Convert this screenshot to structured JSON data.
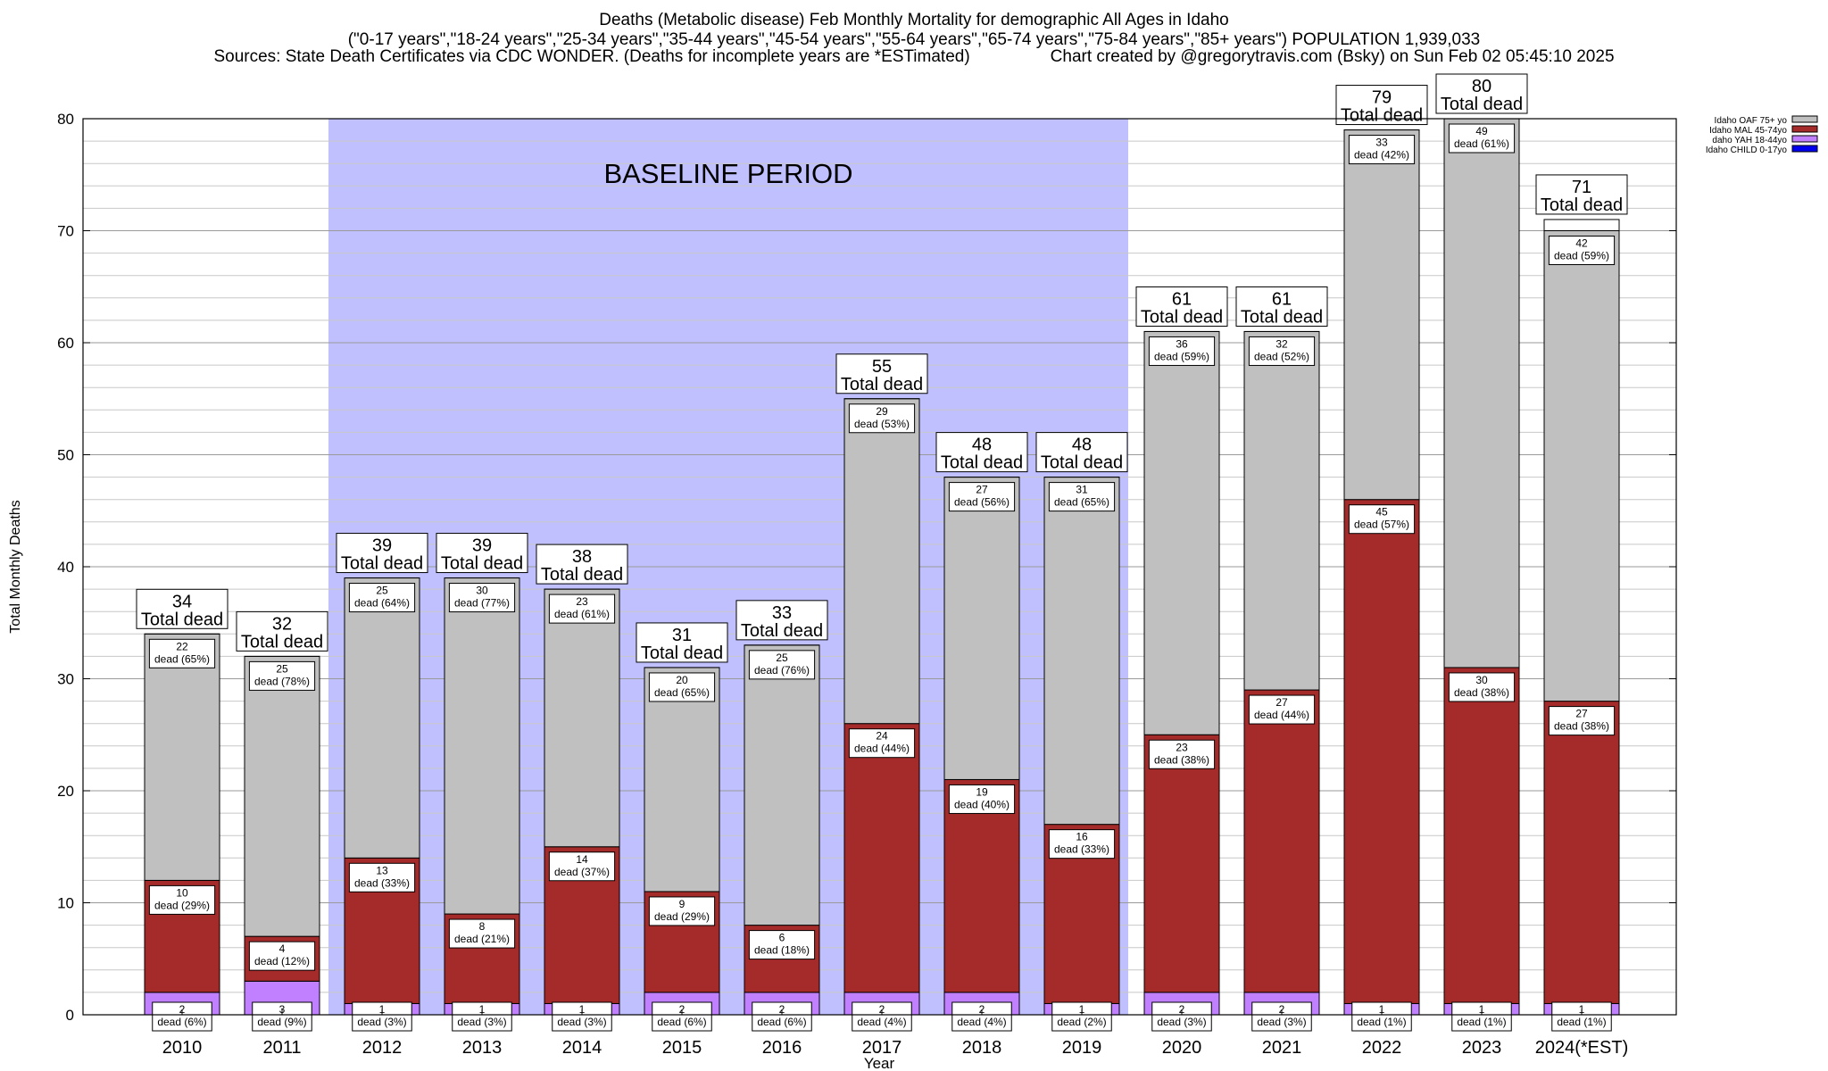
{
  "header": {
    "title": "Deaths (Metabolic disease) Feb Monthly Mortality for demographic All Ages in Idaho",
    "subtitle": "(\"0-17 years\",\"18-24 years\",\"25-34 years\",\"35-44 years\",\"45-54 years\",\"55-64 years\",\"65-74 years\",\"75-84 years\",\"85+ years\") POPULATION 1,939,033",
    "sources": "Sources: State Death Certificates via CDC WONDER. (Deaths for incomplete years are *ESTimated)",
    "credit": "Chart created by @gregorytravis.com (Bsky) on Sun Feb 02 05:45:10 2025"
  },
  "colors": {
    "oaf": "#c0c0c0",
    "mal": "#a52a2a",
    "yah": "#c080ff",
    "child": "#0000ee",
    "baseline": "#c0c0ff"
  },
  "chart_data": {
    "type": "bar",
    "stacked": true,
    "ylabel": "Total Monthly Deaths",
    "xlabel": "Year",
    "ylim": [
      0,
      80
    ],
    "yticks": [
      0,
      10,
      20,
      30,
      40,
      50,
      60,
      70,
      80
    ],
    "grid": true,
    "legend_position": "top-right",
    "baseline_label": "BASELINE PERIOD",
    "baseline_range": [
      "2012",
      "2019"
    ],
    "categories": [
      "2010",
      "2011",
      "2012",
      "2013",
      "2014",
      "2015",
      "2016",
      "2017",
      "2018",
      "2019",
      "2020",
      "2021",
      "2022",
      "2023",
      "2024(*EST)"
    ],
    "totals": [
      34,
      32,
      39,
      39,
      38,
      31,
      33,
      55,
      48,
      48,
      61,
      61,
      79,
      80,
      71
    ],
    "total_suffix": "Total dead",
    "dead_word": "dead",
    "series": [
      {
        "name": "Idaho CHILD 0-17yo",
        "key": "child",
        "values": [
          0,
          0,
          0,
          0,
          0,
          0,
          0,
          0,
          0,
          0,
          0,
          0,
          0,
          0,
          0
        ],
        "pct": [
          0,
          0,
          0,
          0,
          0,
          0,
          0,
          0,
          0,
          0,
          0,
          0,
          0,
          0,
          0
        ]
      },
      {
        "name": "daho YAH 18-44yo",
        "key": "yah",
        "values": [
          2,
          3,
          1,
          1,
          1,
          2,
          2,
          2,
          2,
          1,
          2,
          2,
          1,
          1,
          1
        ],
        "pct": [
          6,
          9,
          3,
          3,
          3,
          6,
          6,
          4,
          4,
          2,
          3,
          3,
          1,
          1,
          1
        ]
      },
      {
        "name": "Idaho MAL 45-74yo",
        "key": "mal",
        "values": [
          10,
          4,
          13,
          8,
          14,
          9,
          6,
          24,
          19,
          16,
          23,
          27,
          45,
          30,
          27
        ],
        "pct": [
          29,
          12,
          33,
          21,
          37,
          29,
          18,
          44,
          40,
          33,
          38,
          44,
          57,
          38,
          38
        ]
      },
      {
        "name": "Idaho OAF 75+ yo",
        "key": "oaf",
        "values": [
          22,
          25,
          25,
          30,
          23,
          20,
          25,
          29,
          27,
          31,
          36,
          32,
          33,
          49,
          42
        ],
        "pct": [
          65,
          78,
          64,
          77,
          61,
          65,
          76,
          53,
          56,
          65,
          59,
          52,
          42,
          61,
          59
        ]
      }
    ]
  }
}
